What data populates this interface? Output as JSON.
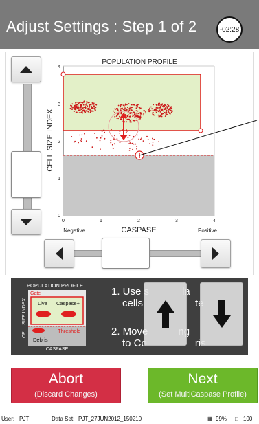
{
  "header": {
    "title": "Adjust Settings : Step 1 of 2",
    "timer": "-02:28"
  },
  "plot": {
    "title": "POPULATION PROFILE",
    "xlabel": "CASPASE",
    "ylabel": "CELL SIZE INDEX",
    "x_ticks": [
      "0",
      "1",
      "2",
      "3",
      "4"
    ],
    "y_ticks": [
      "0",
      "1",
      "2",
      "3",
      "4"
    ],
    "x_neg_label": "Negative",
    "x_pos_label": "Positive",
    "colors": {
      "gate": "#e02020",
      "gate_fill": "#e3f0c8",
      "below_threshold": "#c8c8c8",
      "dots": "#cc1a1a"
    }
  },
  "instructions": {
    "step1": "1. Use s",
    "step1_rest": "la",
    "step1_line2": "cells",
    "step1_line2_rest": "te",
    "step2": "2. Move",
    "step2_rest": "ng",
    "step2_line2": "to Co",
    "step2_line2_rest": "ris"
  },
  "legend": {
    "title": "POPULATION PROFILE",
    "ylabel": "CELL SIZE INDEX",
    "xlabel": "CASPASE",
    "gate": "Gate",
    "live": "Live",
    "caspase": "Caspase+",
    "threshold": "Threshold",
    "debris": "Debris"
  },
  "buttons": {
    "abort": {
      "label": "Abort",
      "sub": "(Discard Changes)"
    },
    "next": {
      "label": "Next",
      "sub": "(Set MultiCaspase Profile)"
    }
  },
  "footer": {
    "user_label": "User:",
    "user": "PJT",
    "dataset_label": "Data Set:",
    "dataset": "PJT_27JUN2012_150210",
    "battery": "99%",
    "storage": "100"
  },
  "icons": {
    "up": "up-arrow-icon",
    "down": "down-arrow-icon",
    "left": "left-arrow-icon",
    "right": "right-arrow-icon",
    "battery": "battery-icon",
    "storage": "storage-icon"
  }
}
